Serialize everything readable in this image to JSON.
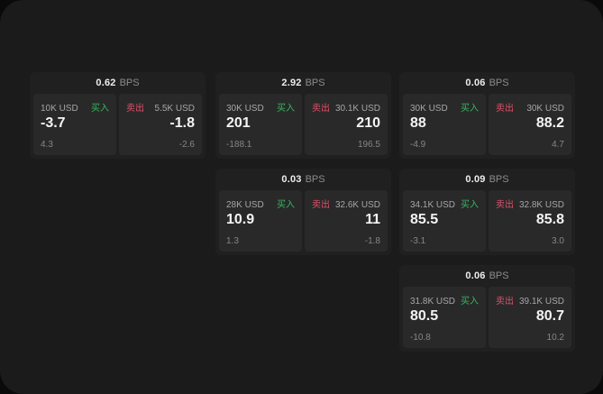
{
  "labels": {
    "bps": "BPS",
    "buy": "买入",
    "sell": "卖出"
  },
  "colors": {
    "surface": "#1b1b1c",
    "card": "#202021",
    "panel": "#29292a",
    "buy": "#35b95c",
    "sell": "#dc5068"
  },
  "cards": [
    {
      "bps": "0.62",
      "buy": {
        "size": "10K USD",
        "value": "-3.7",
        "delta": "4.3"
      },
      "sell": {
        "size": "5.5K USD",
        "value": "-1.8",
        "delta": "-2.6"
      }
    },
    {
      "bps": "2.92",
      "buy": {
        "size": "30K USD",
        "value": "201",
        "delta": "-188.1"
      },
      "sell": {
        "size": "30.1K USD",
        "value": "210",
        "delta": "196.5"
      }
    },
    {
      "bps": "0.06",
      "buy": {
        "size": "30K USD",
        "value": "88",
        "delta": "-4.9"
      },
      "sell": {
        "size": "30K USD",
        "value": "88.2",
        "delta": "4.7"
      }
    },
    {
      "bps": "0.03",
      "buy": {
        "size": "28K USD",
        "value": "10.9",
        "delta": "1.3"
      },
      "sell": {
        "size": "32.6K USD",
        "value": "11",
        "delta": "-1.8"
      }
    },
    {
      "bps": "0.09",
      "buy": {
        "size": "34.1K USD",
        "value": "85.5",
        "delta": "-3.1"
      },
      "sell": {
        "size": "32.8K USD",
        "value": "85.8",
        "delta": "3.0"
      }
    },
    {
      "bps": "0.06",
      "buy": {
        "size": "31.8K USD",
        "value": "80.5",
        "delta": "-10.8"
      },
      "sell": {
        "size": "39.1K USD",
        "value": "80.7",
        "delta": "10.2"
      }
    }
  ]
}
